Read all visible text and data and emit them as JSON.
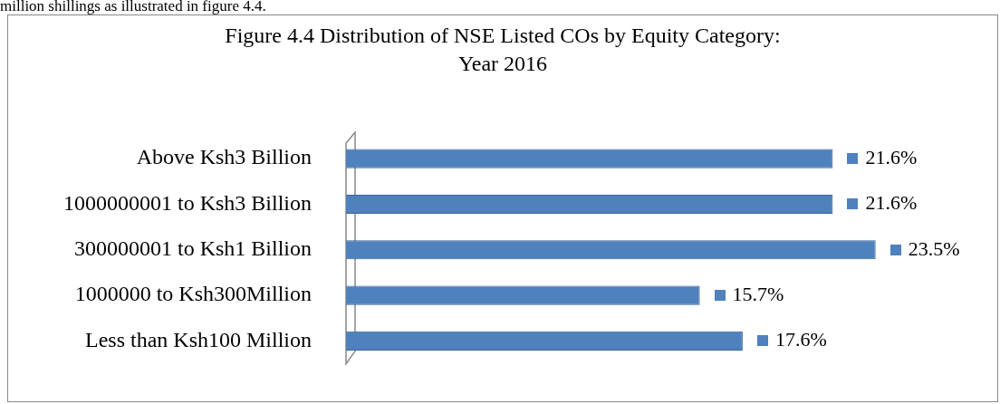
{
  "chart_data": {
    "type": "bar",
    "orientation": "horizontal",
    "title": [
      "Figure 4.4 Distribution of NSE Listed COs by Equity Category:",
      "Year 2016"
    ],
    "categories": [
      "Above Ksh3 Billion",
      "1000000001 to Ksh3 Billion",
      "300000001 to Ksh1 Billion",
      "1000000 to Ksh300Million",
      "Less than Ksh100 Million"
    ],
    "values": [
      21.6,
      21.6,
      23.5,
      15.7,
      17.6
    ],
    "value_labels": [
      "21.6%",
      "21.6%",
      "23.5%",
      "15.7%",
      "17.6%"
    ],
    "color": "#4f81bd",
    "annotations": [
      "million shillings as illustrated in figure 4.4."
    ]
  }
}
